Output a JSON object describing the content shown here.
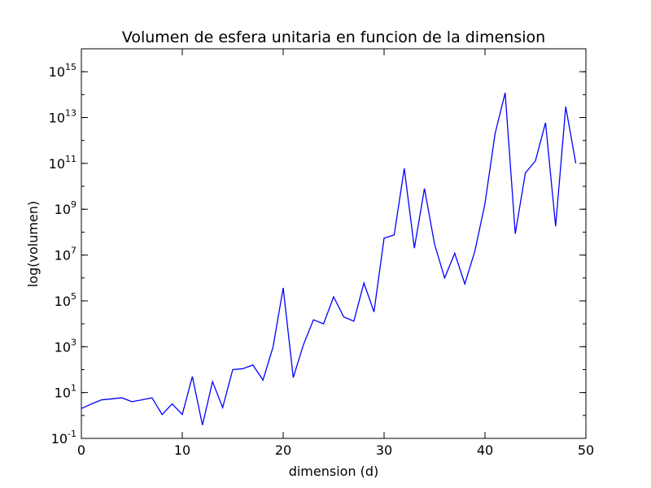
{
  "chart_data": {
    "type": "line",
    "title": "Volumen de esfera unitaria en funcion de la dimension",
    "xlabel": "dimension (d)",
    "ylabel": "log(volumen)",
    "xlim": [
      0,
      50
    ],
    "ylim": [
      0.1,
      1e+16
    ],
    "yscale": "log",
    "grid": false,
    "line_color": "#0000ff",
    "x_ticks": [
      {
        "value": 0,
        "label": "0"
      },
      {
        "value": 10,
        "label": "10"
      },
      {
        "value": 20,
        "label": "20"
      },
      {
        "value": 30,
        "label": "30"
      },
      {
        "value": 40,
        "label": "40"
      },
      {
        "value": 50,
        "label": "50"
      }
    ],
    "y_ticks": [
      {
        "exp": -1,
        "base": "10",
        "sup": "-1"
      },
      {
        "exp": 1,
        "base": "10",
        "sup": "1"
      },
      {
        "exp": 3,
        "base": "10",
        "sup": "3"
      },
      {
        "exp": 5,
        "base": "10",
        "sup": "5"
      },
      {
        "exp": 7,
        "base": "10",
        "sup": "7"
      },
      {
        "exp": 9,
        "base": "10",
        "sup": "9"
      },
      {
        "exp": 11,
        "base": "10",
        "sup": "11"
      },
      {
        "exp": 13,
        "base": "10",
        "sup": "13"
      },
      {
        "exp": 15,
        "base": "10",
        "sup": "15"
      }
    ],
    "x": [
      0,
      1,
      2,
      3,
      4,
      5,
      6,
      7,
      8,
      9,
      10,
      11,
      12,
      13,
      14,
      15,
      16,
      17,
      18,
      19,
      20,
      21,
      22,
      23,
      24,
      25,
      26,
      27,
      28,
      29,
      30,
      31,
      32,
      33,
      34,
      35,
      36,
      37,
      38,
      39,
      40,
      41,
      42,
      43,
      44,
      45,
      46,
      47,
      48,
      49
    ],
    "values": [
      2.0,
      3.2,
      4.8,
      5.3,
      5.9,
      4.0,
      4.8,
      5.9,
      1.1,
      3.2,
      1.1,
      50,
      0.38,
      30,
      2.2,
      100,
      110,
      160,
      35,
      1000,
      370000,
      45,
      1200,
      15000,
      10000,
      150000,
      20000,
      13000,
      600000,
      33000,
      55000000,
      75000000,
      60000000000,
      20000000,
      8000000000,
      30000000,
      1000000,
      12000000,
      550000,
      15000000,
      1800000000,
      2000000000000,
      120000000000000,
      85000000,
      38000000000,
      130000000000,
      6000000000000,
      180000000,
      30000000000000,
      100000000000
    ]
  }
}
